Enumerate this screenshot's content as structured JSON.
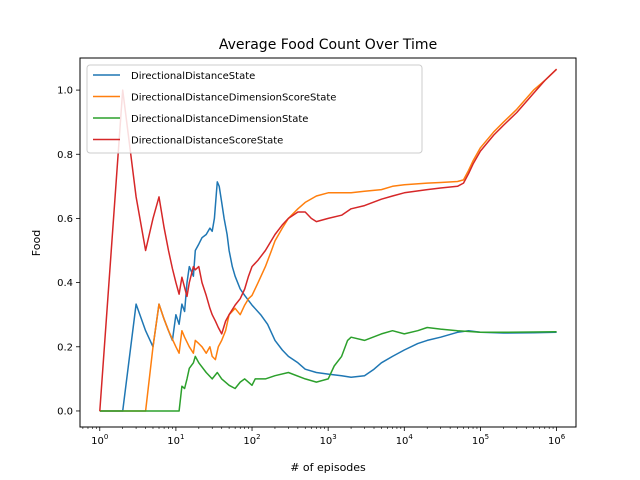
{
  "chart_data": {
    "type": "line",
    "title": "Average Food Count Over Time",
    "xlabel": "# of episodes",
    "ylabel": "Food",
    "x_scale": "log",
    "xlim": [
      0.55,
      1800000
    ],
    "ylim": [
      -0.05,
      1.1
    ],
    "legend_position": "top-left",
    "grid": false,
    "x_ticks": [
      {
        "value": 1,
        "base": "10",
        "exp": "0"
      },
      {
        "value": 10,
        "base": "10",
        "exp": "1"
      },
      {
        "value": 100,
        "base": "10",
        "exp": "2"
      },
      {
        "value": 1000,
        "base": "10",
        "exp": "3"
      },
      {
        "value": 10000,
        "base": "10",
        "exp": "4"
      },
      {
        "value": 100000,
        "base": "10",
        "exp": "5"
      },
      {
        "value": 1000000,
        "base": "10",
        "exp": "6"
      }
    ],
    "y_ticks": [
      "0.0",
      "0.2",
      "0.4",
      "0.6",
      "0.8",
      "1.0"
    ],
    "series": [
      {
        "name": "DirectionalDistanceState",
        "color": "#1f77b4",
        "points": [
          [
            1,
            0
          ],
          [
            2,
            0
          ],
          [
            3,
            0.333
          ],
          [
            4,
            0.25
          ],
          [
            5,
            0.2
          ],
          [
            6,
            0.333
          ],
          [
            7,
            0.286
          ],
          [
            8,
            0.25
          ],
          [
            9,
            0.22
          ],
          [
            10,
            0.3
          ],
          [
            11,
            0.27
          ],
          [
            12,
            0.333
          ],
          [
            13,
            0.31
          ],
          [
            14,
            0.4
          ],
          [
            15,
            0.45
          ],
          [
            17,
            0.42
          ],
          [
            18,
            0.5
          ],
          [
            20,
            0.52
          ],
          [
            22,
            0.54
          ],
          [
            25,
            0.55
          ],
          [
            28,
            0.57
          ],
          [
            30,
            0.56
          ],
          [
            32,
            0.6
          ],
          [
            34,
            0.68
          ],
          [
            35,
            0.714
          ],
          [
            37,
            0.7
          ],
          [
            40,
            0.65
          ],
          [
            43,
            0.6
          ],
          [
            47,
            0.55
          ],
          [
            50,
            0.5
          ],
          [
            55,
            0.45
          ],
          [
            60,
            0.42
          ],
          [
            70,
            0.38
          ],
          [
            80,
            0.36
          ],
          [
            100,
            0.33
          ],
          [
            130,
            0.3
          ],
          [
            160,
            0.27
          ],
          [
            200,
            0.22
          ],
          [
            250,
            0.19
          ],
          [
            300,
            0.17
          ],
          [
            400,
            0.15
          ],
          [
            500,
            0.13
          ],
          [
            700,
            0.12
          ],
          [
            1000,
            0.115
          ],
          [
            1500,
            0.11
          ],
          [
            2000,
            0.105
          ],
          [
            3000,
            0.11
          ],
          [
            4000,
            0.13
          ],
          [
            5000,
            0.15
          ],
          [
            7000,
            0.17
          ],
          [
            10000,
            0.19
          ],
          [
            15000,
            0.21
          ],
          [
            20000,
            0.22
          ],
          [
            30000,
            0.23
          ],
          [
            50000,
            0.245
          ],
          [
            70000,
            0.25
          ],
          [
            100000,
            0.245
          ],
          [
            200000,
            0.243
          ],
          [
            500000,
            0.244
          ],
          [
            1000000,
            0.245
          ]
        ]
      },
      {
        "name": "DirectionalDistanceDimensionScoreState",
        "color": "#ff7f0e",
        "points": [
          [
            1,
            0
          ],
          [
            3,
            0
          ],
          [
            4,
            0
          ],
          [
            5,
            0.2
          ],
          [
            6,
            0.333
          ],
          [
            7,
            0.286
          ],
          [
            8,
            0.25
          ],
          [
            10,
            0.2
          ],
          [
            11,
            0.18
          ],
          [
            12,
            0.25
          ],
          [
            13,
            0.23
          ],
          [
            15,
            0.2
          ],
          [
            17,
            0.18
          ],
          [
            18,
            0.22
          ],
          [
            20,
            0.21
          ],
          [
            22,
            0.2
          ],
          [
            25,
            0.18
          ],
          [
            28,
            0.2
          ],
          [
            30,
            0.17
          ],
          [
            33,
            0.16
          ],
          [
            36,
            0.2
          ],
          [
            40,
            0.22
          ],
          [
            45,
            0.25
          ],
          [
            50,
            0.3
          ],
          [
            60,
            0.32
          ],
          [
            70,
            0.3
          ],
          [
            80,
            0.33
          ],
          [
            90,
            0.35
          ],
          [
            100,
            0.36
          ],
          [
            120,
            0.4
          ],
          [
            150,
            0.45
          ],
          [
            180,
            0.5
          ],
          [
            200,
            0.53
          ],
          [
            250,
            0.57
          ],
          [
            300,
            0.6
          ],
          [
            400,
            0.63
          ],
          [
            500,
            0.65
          ],
          [
            700,
            0.67
          ],
          [
            1000,
            0.68
          ],
          [
            1500,
            0.68
          ],
          [
            2000,
            0.68
          ],
          [
            3000,
            0.685
          ],
          [
            5000,
            0.69
          ],
          [
            7000,
            0.7
          ],
          [
            10000,
            0.705
          ],
          [
            20000,
            0.71
          ],
          [
            30000,
            0.712
          ],
          [
            50000,
            0.715
          ],
          [
            60000,
            0.72
          ],
          [
            70000,
            0.75
          ],
          [
            80000,
            0.78
          ],
          [
            100000,
            0.82
          ],
          [
            150000,
            0.87
          ],
          [
            200000,
            0.9
          ],
          [
            300000,
            0.94
          ],
          [
            500000,
            1.0
          ],
          [
            700000,
            1.03
          ],
          [
            1000000,
            1.065
          ]
        ]
      },
      {
        "name": "DirectionalDistanceDimensionState",
        "color": "#2ca02c",
        "points": [
          [
            1,
            0
          ],
          [
            5,
            0
          ],
          [
            10,
            0
          ],
          [
            11,
            0
          ],
          [
            12,
            0.077
          ],
          [
            13,
            0.07
          ],
          [
            14,
            0.1
          ],
          [
            15,
            0.133
          ],
          [
            17,
            0.15
          ],
          [
            18,
            0.17
          ],
          [
            20,
            0.15
          ],
          [
            25,
            0.12
          ],
          [
            30,
            0.1
          ],
          [
            35,
            0.12
          ],
          [
            40,
            0.1
          ],
          [
            50,
            0.08
          ],
          [
            60,
            0.07
          ],
          [
            70,
            0.09
          ],
          [
            80,
            0.1
          ],
          [
            100,
            0.08
          ],
          [
            110,
            0.1
          ],
          [
            150,
            0.1
          ],
          [
            200,
            0.11
          ],
          [
            300,
            0.12
          ],
          [
            500,
            0.1
          ],
          [
            700,
            0.09
          ],
          [
            1000,
            0.1
          ],
          [
            1200,
            0.14
          ],
          [
            1500,
            0.17
          ],
          [
            1800,
            0.22
          ],
          [
            2000,
            0.23
          ],
          [
            3000,
            0.22
          ],
          [
            5000,
            0.24
          ],
          [
            7000,
            0.25
          ],
          [
            10000,
            0.24
          ],
          [
            15000,
            0.25
          ],
          [
            20000,
            0.26
          ],
          [
            30000,
            0.255
          ],
          [
            50000,
            0.25
          ],
          [
            100000,
            0.245
          ],
          [
            200000,
            0.245
          ],
          [
            500000,
            0.246
          ],
          [
            1000000,
            0.247
          ]
        ]
      },
      {
        "name": "DirectionalDistanceScoreState",
        "color": "#d62728",
        "points": [
          [
            1,
            0
          ],
          [
            2,
            1.0
          ],
          [
            3,
            0.667
          ],
          [
            4,
            0.5
          ],
          [
            5,
            0.6
          ],
          [
            6,
            0.667
          ],
          [
            7,
            0.571
          ],
          [
            8,
            0.5
          ],
          [
            9,
            0.444
          ],
          [
            10,
            0.4
          ],
          [
            11,
            0.364
          ],
          [
            12,
            0.417
          ],
          [
            13,
            0.385
          ],
          [
            14,
            0.357
          ],
          [
            15,
            0.4
          ],
          [
            17,
            0.45
          ],
          [
            18,
            0.44
          ],
          [
            20,
            0.45
          ],
          [
            22,
            0.4
          ],
          [
            25,
            0.36
          ],
          [
            28,
            0.32
          ],
          [
            30,
            0.3
          ],
          [
            33,
            0.28
          ],
          [
            36,
            0.26
          ],
          [
            40,
            0.24
          ],
          [
            45,
            0.28
          ],
          [
            50,
            0.3
          ],
          [
            60,
            0.33
          ],
          [
            70,
            0.35
          ],
          [
            80,
            0.38
          ],
          [
            90,
            0.42
          ],
          [
            100,
            0.45
          ],
          [
            120,
            0.47
          ],
          [
            150,
            0.5
          ],
          [
            200,
            0.55
          ],
          [
            250,
            0.58
          ],
          [
            300,
            0.6
          ],
          [
            400,
            0.62
          ],
          [
            500,
            0.62
          ],
          [
            600,
            0.6
          ],
          [
            700,
            0.59
          ],
          [
            1000,
            0.6
          ],
          [
            1500,
            0.61
          ],
          [
            2000,
            0.63
          ],
          [
            3000,
            0.64
          ],
          [
            5000,
            0.66
          ],
          [
            7000,
            0.67
          ],
          [
            10000,
            0.68
          ],
          [
            20000,
            0.69
          ],
          [
            30000,
            0.695
          ],
          [
            50000,
            0.7
          ],
          [
            60000,
            0.71
          ],
          [
            70000,
            0.74
          ],
          [
            80000,
            0.77
          ],
          [
            100000,
            0.81
          ],
          [
            150000,
            0.86
          ],
          [
            200000,
            0.89
          ],
          [
            300000,
            0.93
          ],
          [
            500000,
            0.99
          ],
          [
            700000,
            1.03
          ],
          [
            1000000,
            1.065
          ]
        ]
      }
    ]
  }
}
